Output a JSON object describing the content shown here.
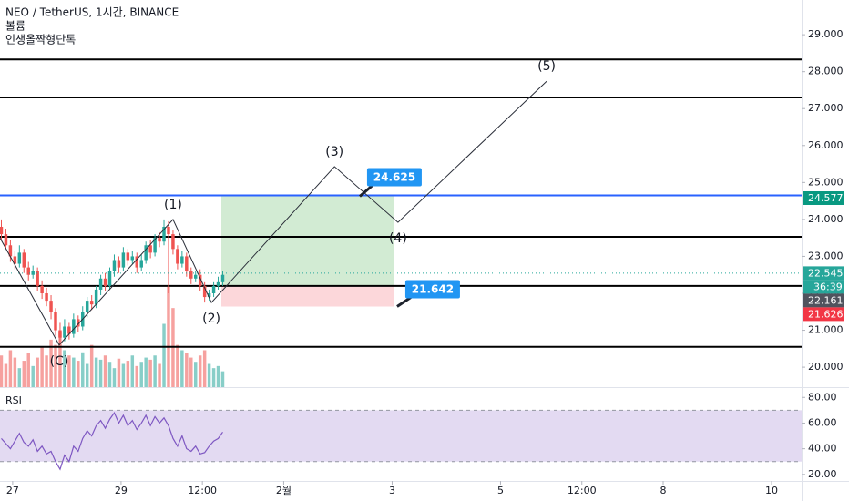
{
  "header": {
    "symbol": "NEO / TetherUS, 1시간, BINANCE",
    "volume": "볼륨",
    "indicator": "인생올짝형단톡"
  },
  "chart_data": {
    "type": "candlestick",
    "x": [
      -5,
      -3,
      -1,
      1,
      3,
      5,
      7,
      9,
      11,
      13,
      15,
      17,
      19,
      21,
      23,
      25,
      27,
      29,
      31,
      33,
      35,
      37,
      39,
      41,
      43,
      45,
      47,
      49,
      51,
      53,
      55,
      57,
      59,
      61,
      63,
      65,
      67,
      69,
      71,
      73,
      75,
      77,
      79,
      81,
      83,
      85,
      87,
      89,
      91,
      93
    ],
    "open": [
      23.8,
      23.6,
      23.3,
      23.0,
      22.8,
      23.1,
      22.7,
      22.5,
      22.6,
      22.2,
      22.0,
      21.8,
      21.5,
      21.0,
      20.8,
      21.1,
      20.9,
      21.3,
      21.1,
      21.5,
      21.8,
      21.7,
      22.1,
      22.4,
      22.2,
      22.6,
      22.9,
      22.7,
      23.1,
      22.9,
      23.0,
      22.7,
      22.9,
      23.3,
      23.1,
      23.5,
      23.4,
      23.8,
      23.6,
      23.2,
      22.8,
      23.0,
      22.6,
      22.4,
      22.5,
      22.2,
      21.9,
      22.0,
      22.2,
      22.3
    ],
    "high": [
      24.0,
      23.75,
      23.45,
      23.15,
      23.3,
      23.2,
      22.85,
      22.75,
      22.7,
      22.35,
      22.15,
      21.95,
      21.6,
      21.2,
      21.3,
      21.2,
      21.45,
      21.4,
      21.65,
      21.9,
      21.95,
      22.2,
      22.5,
      22.55,
      22.7,
      23.05,
      23.0,
      23.25,
      23.2,
      23.15,
      23.1,
      23.05,
      23.4,
      23.45,
      23.6,
      23.65,
      24.0,
      23.95,
      23.7,
      23.3,
      23.15,
      23.1,
      22.7,
      22.6,
      22.65,
      22.3,
      22.1,
      22.3,
      22.45,
      22.6
    ],
    "low": [
      23.45,
      23.2,
      22.85,
      22.65,
      22.7,
      22.55,
      22.35,
      22.4,
      22.05,
      21.85,
      21.65,
      21.3,
      20.85,
      20.6,
      20.7,
      20.75,
      20.8,
      20.95,
      21.0,
      21.35,
      21.55,
      21.6,
      21.95,
      22.05,
      22.1,
      22.45,
      22.55,
      22.6,
      22.75,
      22.8,
      22.55,
      22.6,
      22.8,
      22.95,
      23.0,
      23.25,
      23.3,
      22.0,
      23.05,
      22.65,
      22.7,
      22.45,
      22.25,
      22.3,
      22.05,
      21.75,
      21.8,
      21.9,
      22.1,
      22.2
    ],
    "close": [
      23.6,
      23.3,
      23.0,
      22.8,
      23.1,
      22.7,
      22.5,
      22.6,
      22.2,
      22.0,
      21.8,
      21.5,
      21.0,
      20.8,
      21.1,
      20.9,
      21.3,
      21.1,
      21.5,
      21.8,
      21.7,
      22.1,
      22.4,
      22.2,
      22.6,
      22.9,
      22.7,
      23.1,
      22.9,
      23.0,
      22.7,
      22.9,
      23.3,
      23.1,
      23.5,
      23.4,
      23.8,
      23.6,
      23.2,
      22.8,
      23.0,
      22.6,
      22.4,
      22.5,
      22.2,
      21.9,
      22.0,
      22.2,
      22.3,
      22.5
    ],
    "volume": [
      30,
      22,
      35,
      28,
      18,
      25,
      32,
      20,
      28,
      38,
      30,
      45,
      40,
      52,
      35,
      30,
      28,
      25,
      33,
      22,
      40,
      28,
      26,
      30,
      24,
      18,
      27,
      22,
      25,
      30,
      20,
      24,
      28,
      26,
      30,
      22,
      60,
      95,
      75,
      40,
      35,
      32,
      28,
      24,
      30,
      35,
      22,
      18,
      20,
      15
    ],
    "colors": {
      "up": "#26a69a",
      "down": "#ef5350"
    },
    "xlim": [
      -5.6,
      349.3
    ],
    "xticks": [
      {
        "value": 0,
        "label": "27"
      },
      {
        "value": 48,
        "label": "29"
      },
      {
        "value": 84,
        "label": "12:00"
      },
      {
        "value": 120,
        "label": "2월"
      },
      {
        "value": 168,
        "label": "3"
      },
      {
        "value": 216,
        "label": "5"
      },
      {
        "value": 252,
        "label": "12:00"
      },
      {
        "value": 288,
        "label": "8"
      },
      {
        "value": 336,
        "label": "10"
      }
    ],
    "ylim": [
      19.46,
      29.94
    ],
    "yticks": [
      {
        "value": 20,
        "label": "20.000"
      },
      {
        "value": 21,
        "label": "21.000"
      },
      {
        "value": 22,
        "label": "22.000"
      },
      {
        "value": 23,
        "label": "23.000"
      },
      {
        "value": 24,
        "label": "24.000"
      },
      {
        "value": 25,
        "label": "25.000"
      },
      {
        "value": 26,
        "label": "26.000"
      },
      {
        "value": 27,
        "label": "27.000"
      },
      {
        "value": 28,
        "label": "28.000"
      },
      {
        "value": 29,
        "label": "29.000"
      }
    ],
    "levels": [
      {
        "value": 28.33,
        "color": "#000000"
      },
      {
        "value": 27.3,
        "color": "#000000"
      },
      {
        "value": 24.65,
        "color": "#2962ff"
      },
      {
        "value": 23.53,
        "color": "#000000"
      },
      {
        "value": 22.2,
        "color": "#000000"
      },
      {
        "value": 20.55,
        "color": "#000000"
      }
    ],
    "waves": {
      "x": [
        -5.6,
        20.6,
        71,
        88,
        142.5,
        170.6,
        236.4
      ],
      "y": [
        23.5,
        20.6,
        24.0,
        21.75,
        25.43,
        23.92,
        27.74
      ],
      "labels": [
        null,
        "(C)",
        "(1)",
        "(2)",
        "(3)",
        "(4)",
        "(5)"
      ]
    },
    "position": {
      "x": [
        92.4,
        169
      ],
      "entry": 22.2,
      "target": 24.625,
      "stop": 21.642
    },
    "price_tags": [
      {
        "value": 24.577,
        "color": "#089981"
      },
      {
        "value": 22.545,
        "color": "#26a69a",
        "countdown": "36:39"
      },
      {
        "value": 22.161,
        "color": "#50535e"
      },
      {
        "value": 21.626,
        "color": "#f23645"
      }
    ],
    "rsi": {
      "title": "RSI",
      "color": "#7e57c2",
      "band": [
        30,
        70
      ],
      "values": [
        48,
        44,
        40,
        46,
        52,
        45,
        42,
        47,
        38,
        42,
        36,
        38,
        30,
        24,
        35,
        30,
        42,
        38,
        48,
        54,
        50,
        58,
        62,
        56,
        63,
        68,
        60,
        66,
        58,
        62,
        55,
        60,
        66,
        58,
        65,
        60,
        64,
        58,
        48,
        42,
        50,
        40,
        38,
        42,
        36,
        37,
        42,
        46,
        48,
        53
      ],
      "ylim": [
        14.9,
        88
      ],
      "yticks": [
        {
          "value": 20,
          "label": "20.00"
        },
        {
          "value": 40,
          "label": "40.00"
        },
        {
          "value": 60,
          "label": "60.00"
        },
        {
          "value": 80,
          "label": "80.00"
        }
      ]
    }
  }
}
